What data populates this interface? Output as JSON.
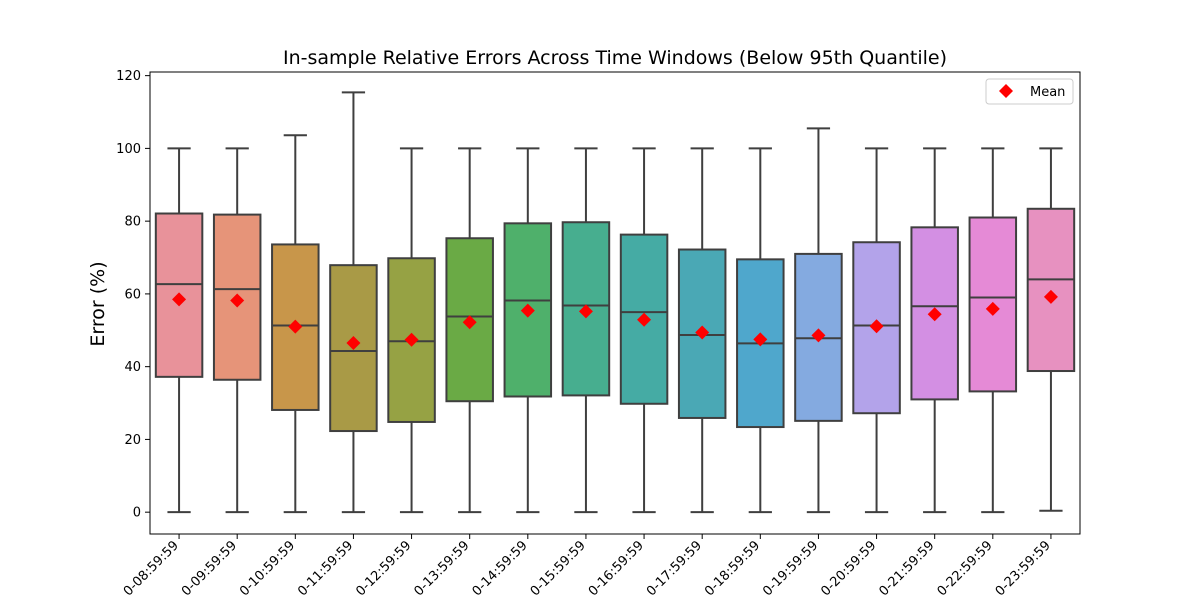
{
  "chart_data": {
    "type": "box",
    "title": "In-sample Relative Errors Across Time Windows (Below 95th Quantile)",
    "xlabel": "",
    "ylabel": "Error (%)",
    "ylim": [
      -6,
      121
    ],
    "yticks": [
      0,
      20,
      40,
      60,
      80,
      100,
      120
    ],
    "legend": {
      "position": "top-right",
      "entries": [
        "Mean"
      ]
    },
    "mean_color": "#ff0000",
    "categories": [
      "0-08:59:59",
      "0-09:59:59",
      "0-10:59:59",
      "0-11:59:59",
      "0-12:59:59",
      "0-13:59:59",
      "0-14:59:59",
      "0-15:59:59",
      "0-16:59:59",
      "0-17:59:59",
      "0-18:59:59",
      "0-19:59:59",
      "0-20:59:59",
      "0-21:59:59",
      "0-22:59:59",
      "0-23:59:59"
    ],
    "boxes": [
      {
        "whisker_low": 0,
        "q1": 37.2,
        "median": 62.7,
        "q3": 82.1,
        "whisker_high": 100,
        "mean": 58.5,
        "color": "#e8929a"
      },
      {
        "whisker_low": 0,
        "q1": 36.4,
        "median": 61.3,
        "q3": 81.8,
        "whisker_high": 100,
        "mean": 58.2,
        "color": "#e69479"
      },
      {
        "whisker_low": 0,
        "q1": 28.1,
        "median": 51.3,
        "q3": 73.6,
        "whisker_high": 103.6,
        "mean": 51.0,
        "color": "#c8964a"
      },
      {
        "whisker_low": 0,
        "q1": 22.3,
        "median": 44.3,
        "q3": 67.9,
        "whisker_high": 115.4,
        "mean": 46.5,
        "color": "#a99a46"
      },
      {
        "whisker_low": 0,
        "q1": 24.8,
        "median": 47.0,
        "q3": 69.8,
        "whisker_high": 100,
        "mean": 47.4,
        "color": "#96a244"
      },
      {
        "whisker_low": 0,
        "q1": 30.5,
        "median": 53.8,
        "q3": 75.3,
        "whisker_high": 100,
        "mean": 52.2,
        "color": "#6aaa45"
      },
      {
        "whisker_low": 0,
        "q1": 31.8,
        "median": 58.2,
        "q3": 79.4,
        "whisker_high": 100,
        "mean": 55.4,
        "color": "#4fb06b"
      },
      {
        "whisker_low": 0,
        "q1": 32.1,
        "median": 56.8,
        "q3": 79.7,
        "whisker_high": 100,
        "mean": 55.2,
        "color": "#47ae8f"
      },
      {
        "whisker_low": 0,
        "q1": 29.8,
        "median": 55.0,
        "q3": 76.3,
        "whisker_high": 100,
        "mean": 52.9,
        "color": "#45aba4"
      },
      {
        "whisker_low": 0,
        "q1": 25.9,
        "median": 48.7,
        "q3": 72.2,
        "whisker_high": 100,
        "mean": 49.4,
        "color": "#4aa8b5"
      },
      {
        "whisker_low": 0,
        "q1": 23.4,
        "median": 46.4,
        "q3": 69.5,
        "whisker_high": 100,
        "mean": 47.5,
        "color": "#4fa7cc"
      },
      {
        "whisker_low": 0,
        "q1": 25.1,
        "median": 47.8,
        "q3": 71.0,
        "whisker_high": 105.5,
        "mean": 48.6,
        "color": "#84aae0"
      },
      {
        "whisker_low": 0,
        "q1": 27.2,
        "median": 51.3,
        "q3": 74.2,
        "whisker_high": 100,
        "mean": 51.1,
        "color": "#b3a3ea"
      },
      {
        "whisker_low": 0,
        "q1": 31.0,
        "median": 56.6,
        "q3": 78.3,
        "whisker_high": 100,
        "mean": 54.4,
        "color": "#d38fe3"
      },
      {
        "whisker_low": 0,
        "q1": 33.2,
        "median": 59.0,
        "q3": 81.0,
        "whisker_high": 100,
        "mean": 55.9,
        "color": "#e58ad6"
      },
      {
        "whisker_low": 0.4,
        "q1": 38.8,
        "median": 64.0,
        "q3": 83.4,
        "whisker_high": 100,
        "mean": 59.2,
        "color": "#e791c0"
      }
    ]
  }
}
